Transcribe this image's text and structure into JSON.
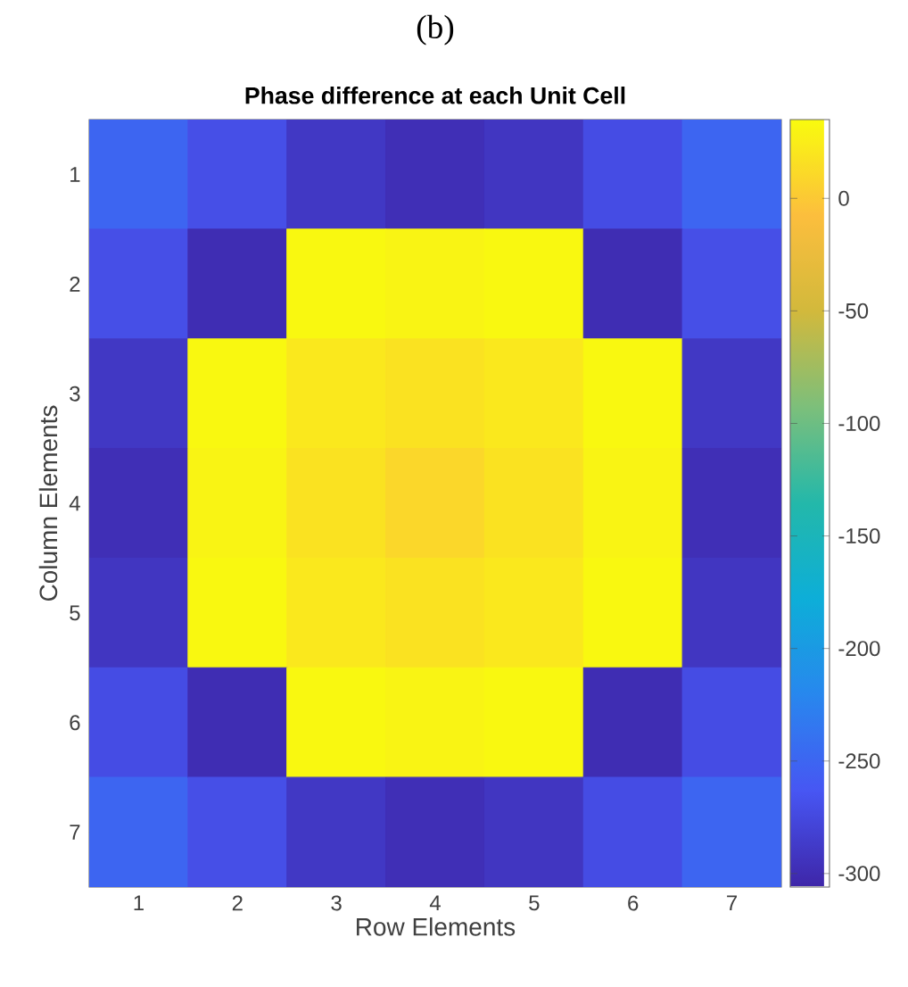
{
  "chart_data": {
    "type": "heatmap",
    "title": "Phase difference at each Unit Cell",
    "xlabel": "Row Elements",
    "ylabel": "Column Elements",
    "annotations": [
      "(b)"
    ],
    "categories": [
      "1",
      "2",
      "3",
      "4",
      "5",
      "6",
      "7"
    ],
    "y_categories": [
      "1",
      "2",
      "3",
      "4",
      "5",
      "6",
      "7"
    ],
    "cells": [
      [
        -250,
        -270,
        -290,
        -298,
        -292,
        -272,
        -250
      ],
      [
        -270,
        -300,
        33,
        30,
        33,
        -300,
        -270
      ],
      [
        -290,
        33,
        22,
        18,
        22,
        33,
        -290
      ],
      [
        -298,
        30,
        18,
        10,
        18,
        30,
        -298
      ],
      [
        -292,
        33,
        22,
        18,
        22,
        33,
        -292
      ],
      [
        -272,
        -300,
        33,
        30,
        33,
        -300,
        -272
      ],
      [
        -250,
        -270,
        -290,
        -298,
        -292,
        -272,
        -250
      ]
    ],
    "clim": [
      -306,
      35
    ],
    "cticks": [
      -300,
      -250,
      -200,
      -150,
      -100,
      -50,
      0
    ]
  }
}
